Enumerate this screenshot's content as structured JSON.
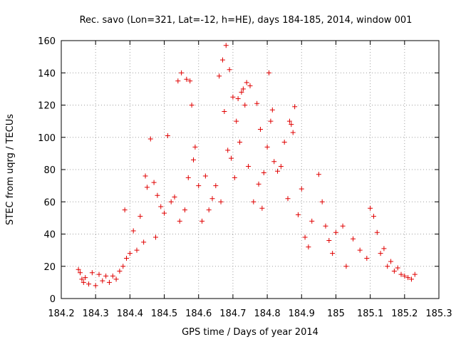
{
  "chart_data": {
    "type": "scatter",
    "title": "Rec. savo (Lon=321, Lat=-12, h=HE), days 184-185, 2014, window 001",
    "xlabel": "GPS time / Days of year 2014",
    "ylabel": "STEC from uqrg / TECUs",
    "xlim": [
      184.2,
      185.3
    ],
    "ylim": [
      0,
      160
    ],
    "x_ticks": [
      184.2,
      184.3,
      184.4,
      184.5,
      184.6,
      184.7,
      184.8,
      184.9,
      185.0,
      185.1,
      185.2,
      185.3
    ],
    "x_tick_labels": [
      "184.2",
      "184.3",
      "184.4",
      "184.5",
      "184.6",
      "184.7",
      "184.8",
      "184.9",
      "185",
      "185.1",
      "185.2",
      "185.3"
    ],
    "y_ticks": [
      0,
      20,
      40,
      60,
      80,
      100,
      120,
      140,
      160
    ],
    "y_tick_labels": [
      "0",
      "20",
      "40",
      "60",
      "80",
      "100",
      "120",
      "140",
      "160"
    ],
    "grid": true,
    "marker": "plus",
    "color": "#e00000",
    "series": [
      {
        "points": [
          [
            184.25,
            18
          ],
          [
            184.255,
            16
          ],
          [
            184.26,
            12
          ],
          [
            184.265,
            10
          ],
          [
            184.27,
            13
          ],
          [
            184.28,
            9
          ],
          [
            184.29,
            16
          ],
          [
            184.3,
            8
          ],
          [
            184.31,
            15
          ],
          [
            184.32,
            11
          ],
          [
            184.33,
            14
          ],
          [
            184.34,
            10
          ],
          [
            184.35,
            14
          ],
          [
            184.36,
            12
          ],
          [
            184.37,
            17
          ],
          [
            184.38,
            20
          ],
          [
            184.385,
            55
          ],
          [
            184.39,
            25
          ],
          [
            184.4,
            28
          ],
          [
            184.41,
            42
          ],
          [
            184.42,
            30
          ],
          [
            184.43,
            51
          ],
          [
            184.44,
            35
          ],
          [
            184.445,
            76
          ],
          [
            184.45,
            69
          ],
          [
            184.46,
            99
          ],
          [
            184.47,
            72
          ],
          [
            184.475,
            38
          ],
          [
            184.48,
            64
          ],
          [
            184.49,
            57
          ],
          [
            184.5,
            53
          ],
          [
            184.51,
            101
          ],
          [
            184.52,
            60
          ],
          [
            184.53,
            63
          ],
          [
            184.54,
            135
          ],
          [
            184.545,
            48
          ],
          [
            184.55,
            140
          ],
          [
            184.56,
            55
          ],
          [
            184.565,
            136
          ],
          [
            184.57,
            75
          ],
          [
            184.575,
            135
          ],
          [
            184.58,
            120
          ],
          [
            184.585,
            86
          ],
          [
            184.59,
            94
          ],
          [
            184.6,
            70
          ],
          [
            184.61,
            48
          ],
          [
            184.62,
            76
          ],
          [
            184.63,
            55
          ],
          [
            184.64,
            62
          ],
          [
            184.65,
            70
          ],
          [
            184.66,
            138
          ],
          [
            184.665,
            60
          ],
          [
            184.67,
            148
          ],
          [
            184.675,
            116
          ],
          [
            184.68,
            157
          ],
          [
            184.685,
            92
          ],
          [
            184.69,
            142
          ],
          [
            184.695,
            87
          ],
          [
            184.7,
            125
          ],
          [
            184.705,
            75
          ],
          [
            184.71,
            110
          ],
          [
            184.715,
            124
          ],
          [
            184.72,
            97
          ],
          [
            184.725,
            128
          ],
          [
            184.73,
            130
          ],
          [
            184.735,
            120
          ],
          [
            184.74,
            134
          ],
          [
            184.745,
            82
          ],
          [
            184.75,
            132
          ],
          [
            184.76,
            60
          ],
          [
            184.77,
            121
          ],
          [
            184.775,
            71
          ],
          [
            184.78,
            105
          ],
          [
            184.785,
            56
          ],
          [
            184.79,
            78
          ],
          [
            184.8,
            94
          ],
          [
            184.805,
            140
          ],
          [
            184.81,
            110
          ],
          [
            184.815,
            117
          ],
          [
            184.82,
            85
          ],
          [
            184.83,
            79
          ],
          [
            184.84,
            82
          ],
          [
            184.85,
            97
          ],
          [
            184.86,
            62
          ],
          [
            184.865,
            110
          ],
          [
            184.87,
            108
          ],
          [
            184.875,
            103
          ],
          [
            184.88,
            119
          ],
          [
            184.89,
            52
          ],
          [
            184.9,
            68
          ],
          [
            184.91,
            38
          ],
          [
            184.92,
            32
          ],
          [
            184.93,
            48
          ],
          [
            184.95,
            77
          ],
          [
            184.96,
            60
          ],
          [
            184.97,
            45
          ],
          [
            184.98,
            36
          ],
          [
            184.99,
            28
          ],
          [
            185.0,
            41
          ],
          [
            185.02,
            45
          ],
          [
            185.03,
            20
          ],
          [
            185.05,
            37
          ],
          [
            185.07,
            30
          ],
          [
            185.09,
            25
          ],
          [
            185.1,
            56
          ],
          [
            185.11,
            51
          ],
          [
            185.12,
            41
          ],
          [
            185.13,
            28
          ],
          [
            185.14,
            31
          ],
          [
            185.15,
            20
          ],
          [
            185.16,
            23
          ],
          [
            185.17,
            17
          ],
          [
            185.18,
            19
          ],
          [
            185.19,
            15
          ],
          [
            185.2,
            14
          ],
          [
            185.21,
            13
          ],
          [
            185.22,
            12
          ],
          [
            185.23,
            15
          ]
        ]
      }
    ]
  }
}
